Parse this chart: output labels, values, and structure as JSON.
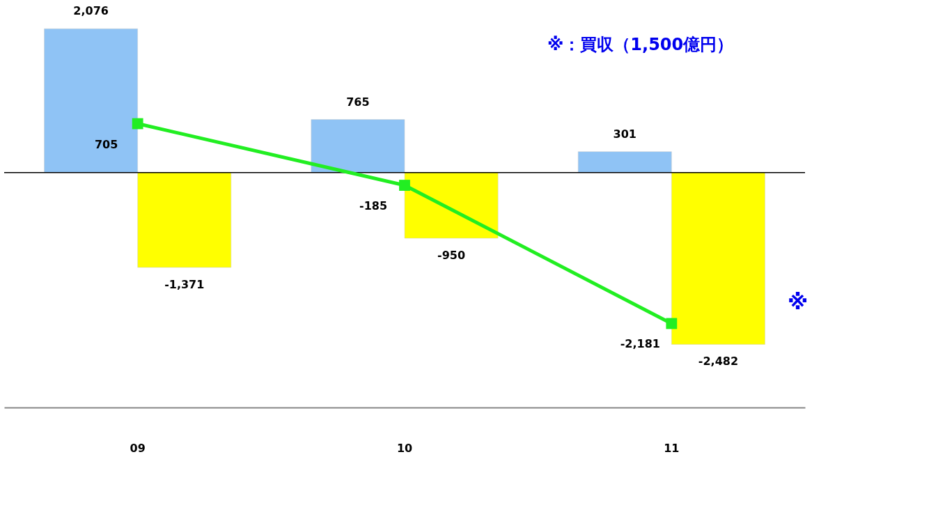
{
  "chart_data": {
    "type": "bar",
    "categories": [
      "09",
      "10",
      "11"
    ],
    "series": [
      {
        "color": "#8fc3f5",
        "values": [
          2076,
          765,
          301
        ],
        "value_labels": [
          "2,076",
          "765",
          "301"
        ]
      },
      {
        "color": "#ffff00",
        "values": [
          -1371,
          -950,
          -2482
        ],
        "value_labels": [
          "-1,371",
          "-950",
          "-2,482"
        ]
      },
      {
        "type": "line",
        "color": "#22ee22",
        "values": [
          705,
          -185,
          -2181
        ],
        "value_labels": [
          "705",
          "-185",
          "-2,181"
        ]
      }
    ],
    "marker": "square",
    "annotations": [
      "※：買収（1,500億円）",
      "※"
    ]
  }
}
